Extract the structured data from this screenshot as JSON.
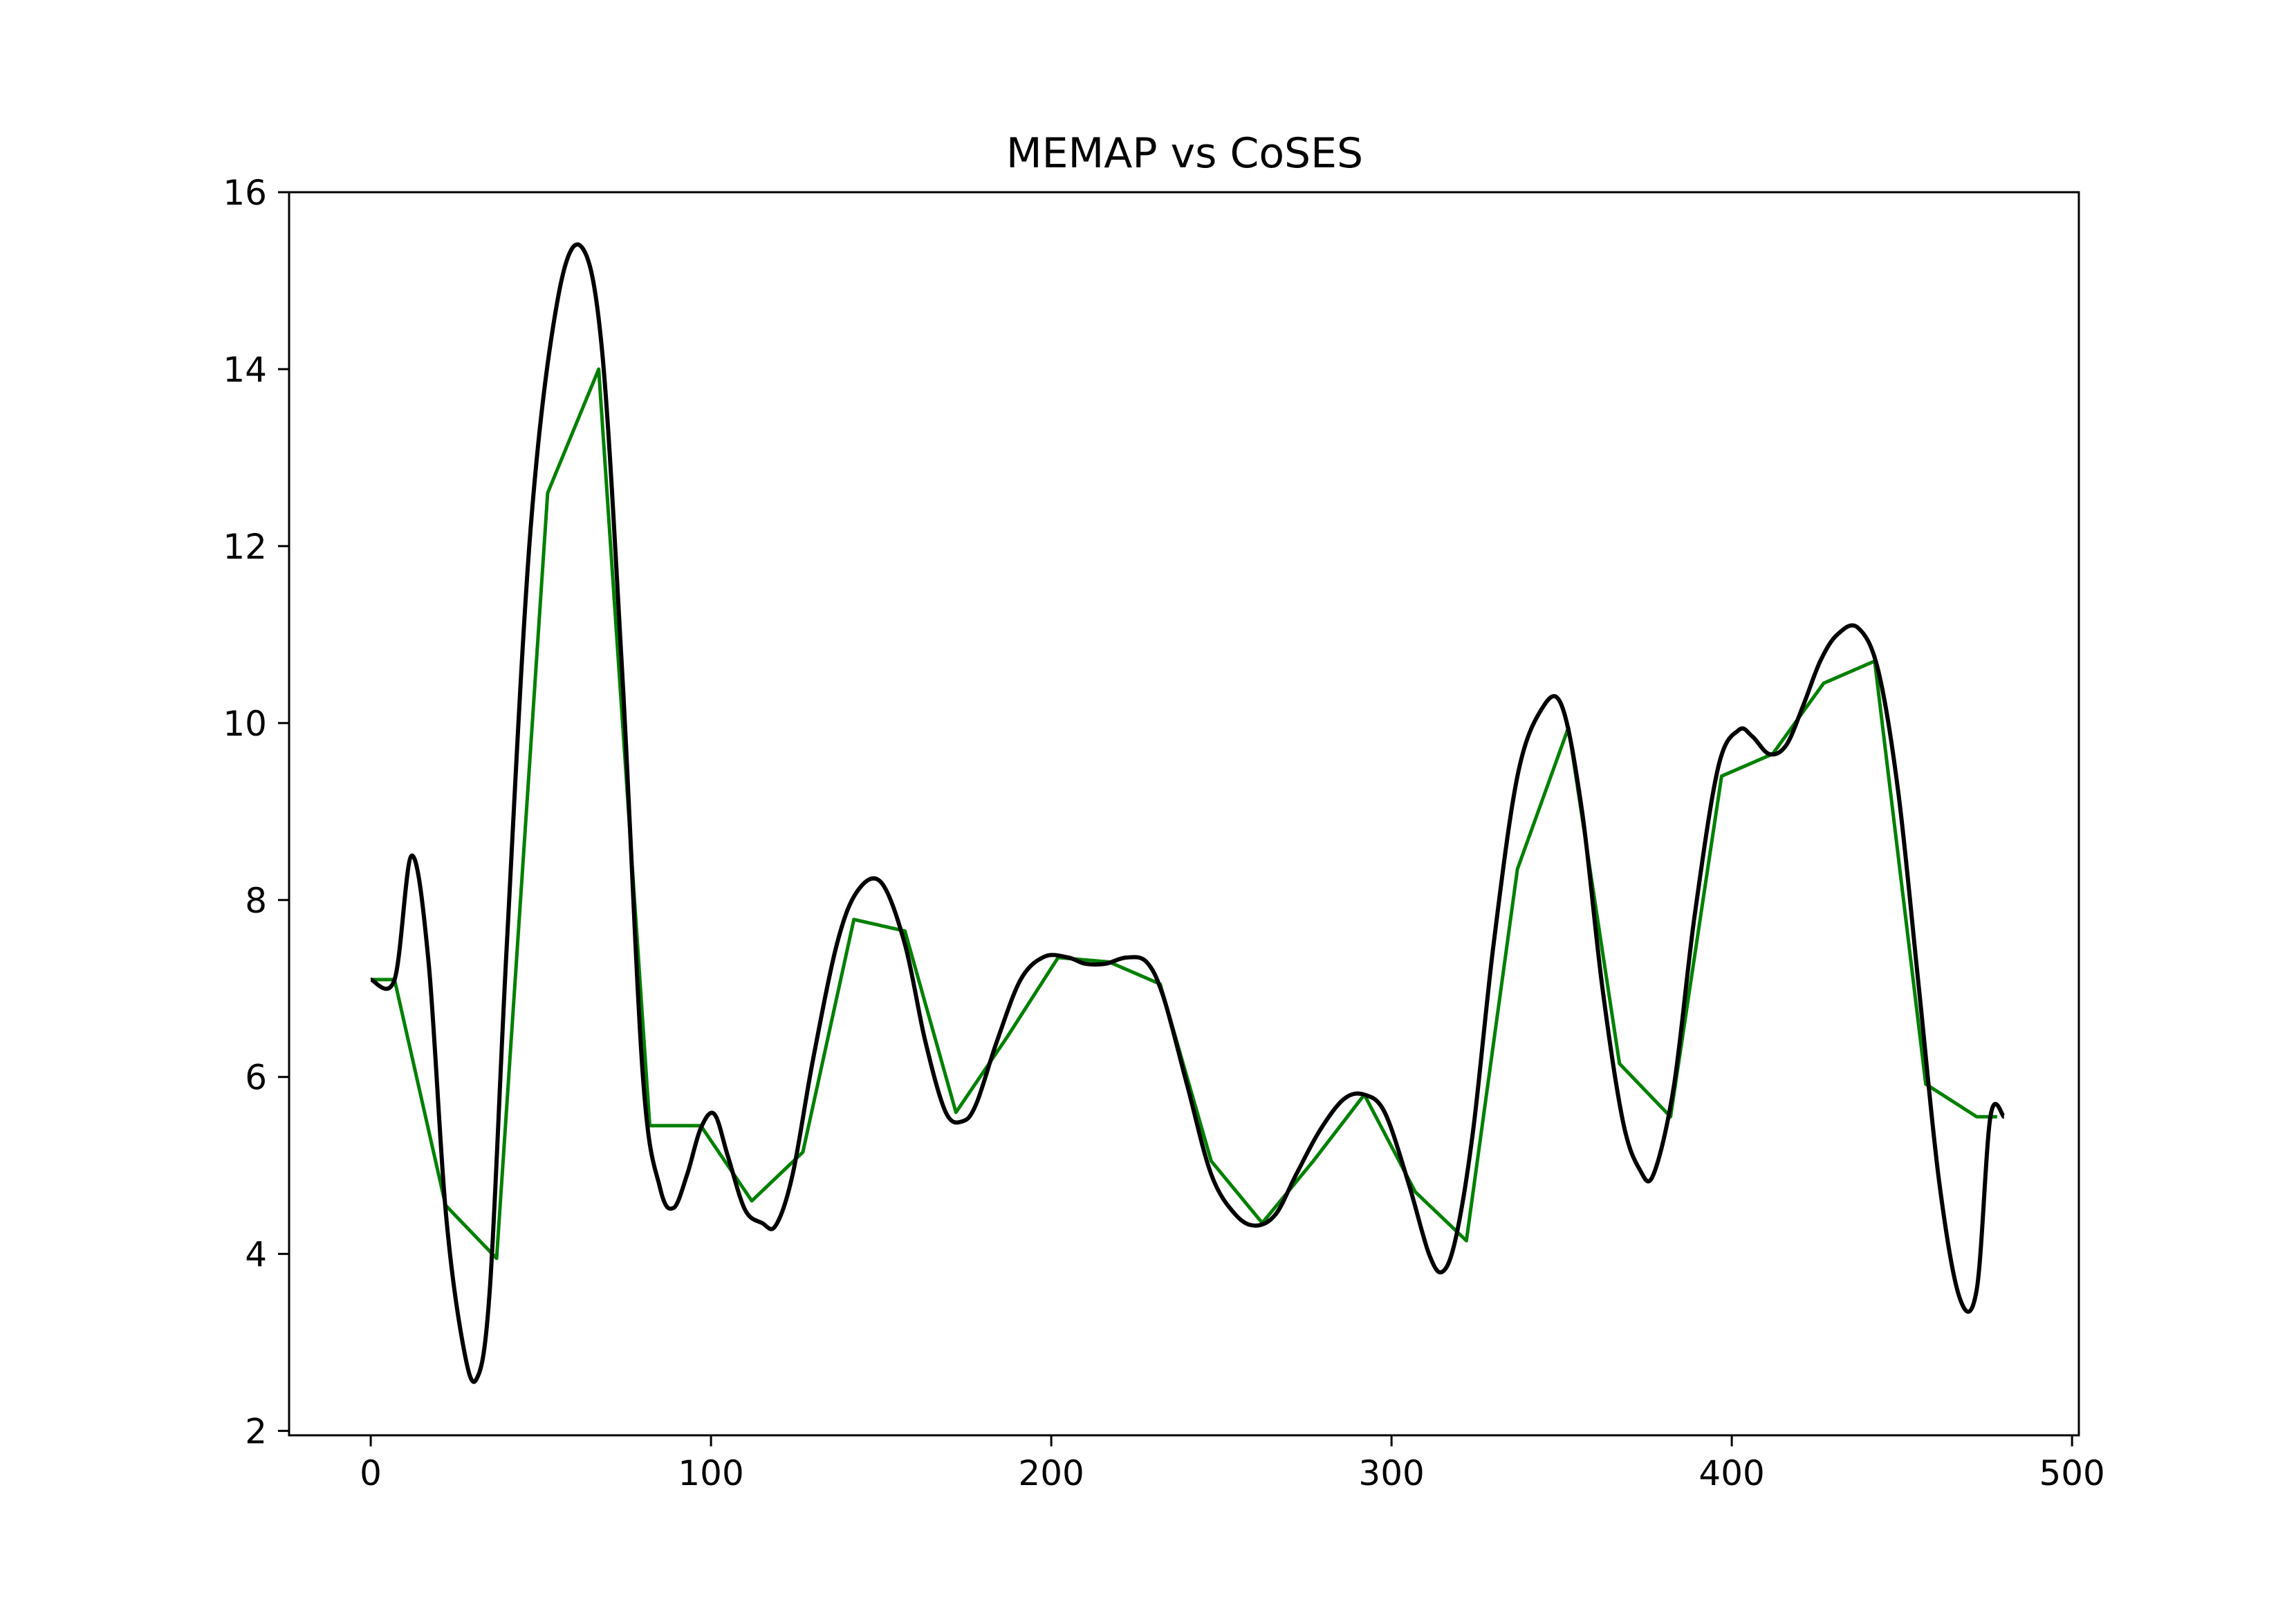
{
  "chart_data": {
    "type": "line",
    "title": "MEMAP vs CoSES",
    "xlabel": "",
    "ylabel": "",
    "xlim": [
      -24,
      502
    ],
    "ylim": [
      1.95,
      16
    ],
    "xticks": [
      0,
      100,
      200,
      300,
      400,
      500
    ],
    "yticks": [
      2,
      4,
      6,
      8,
      10,
      12,
      14,
      16
    ],
    "grid": false,
    "legend": "none",
    "series": [
      {
        "color": "#008000",
        "style": "step-interpolated",
        "x": [
          0,
          7,
          22,
          37,
          52,
          67,
          82,
          97,
          112,
          127,
          142,
          157,
          172,
          187,
          202,
          217,
          232,
          247,
          262,
          277,
          292,
          307,
          322,
          337,
          352,
          367,
          382,
          397,
          412,
          427,
          442,
          457,
          472,
          478
        ],
        "y": [
          7.1,
          7.1,
          4.55,
          3.95,
          12.6,
          14.0,
          5.45,
          5.45,
          4.6,
          5.15,
          7.78,
          7.65,
          5.6,
          6.45,
          7.35,
          7.3,
          7.05,
          5.05,
          4.35,
          5.05,
          5.8,
          4.7,
          4.15,
          8.35,
          9.95,
          6.15,
          5.55,
          9.4,
          9.65,
          10.45,
          10.7,
          5.92,
          5.55,
          5.55
        ]
      },
      {
        "color": "#000000",
        "style": "smooth",
        "x": [
          0,
          7,
          12,
          17,
          22,
          27,
          31,
          35,
          40,
          47,
          55,
          62,
          68,
          74,
          80,
          85,
          89,
          93,
          97,
          101,
          105,
          110,
          115,
          119,
          124,
          130,
          137,
          143,
          150,
          157,
          163,
          169,
          174,
          178,
          184,
          191,
          198,
          205,
          210,
          216,
          222,
          228,
          233,
          240,
          247,
          254,
          260,
          266,
          272,
          279,
          286,
          292,
          298,
          305,
          311,
          315,
          319,
          324,
          330,
          337,
          344,
          350,
          356,
          362,
          368,
          373,
          377,
          383,
          389,
          396,
          402,
          406,
          411,
          416,
          421,
          426,
          431,
          437,
          443,
          449,
          455,
          461,
          467,
          472,
          476,
          480
        ],
        "y": [
          7.1,
          7.1,
          8.5,
          7.3,
          4.5,
          3.0,
          2.58,
          3.6,
          7.5,
          12.2,
          14.8,
          15.38,
          14.2,
          10.5,
          6.0,
          4.75,
          4.52,
          4.9,
          5.42,
          5.58,
          5.1,
          4.5,
          4.35,
          4.32,
          4.9,
          6.2,
          7.5,
          8.1,
          8.2,
          7.5,
          6.4,
          5.6,
          5.5,
          5.7,
          6.4,
          7.1,
          7.36,
          7.35,
          7.28,
          7.28,
          7.35,
          7.3,
          6.9,
          5.9,
          4.9,
          4.45,
          4.32,
          4.45,
          4.9,
          5.4,
          5.75,
          5.8,
          5.6,
          4.8,
          4.0,
          3.8,
          4.2,
          5.4,
          7.5,
          9.4,
          10.15,
          10.2,
          9.0,
          7.0,
          5.5,
          4.95,
          4.9,
          5.9,
          7.8,
          9.5,
          9.92,
          9.85,
          9.65,
          9.75,
          10.2,
          10.7,
          11.0,
          11.08,
          10.6,
          9.2,
          7.0,
          4.8,
          3.5,
          3.6,
          5.55,
          5.55
        ]
      }
    ]
  }
}
